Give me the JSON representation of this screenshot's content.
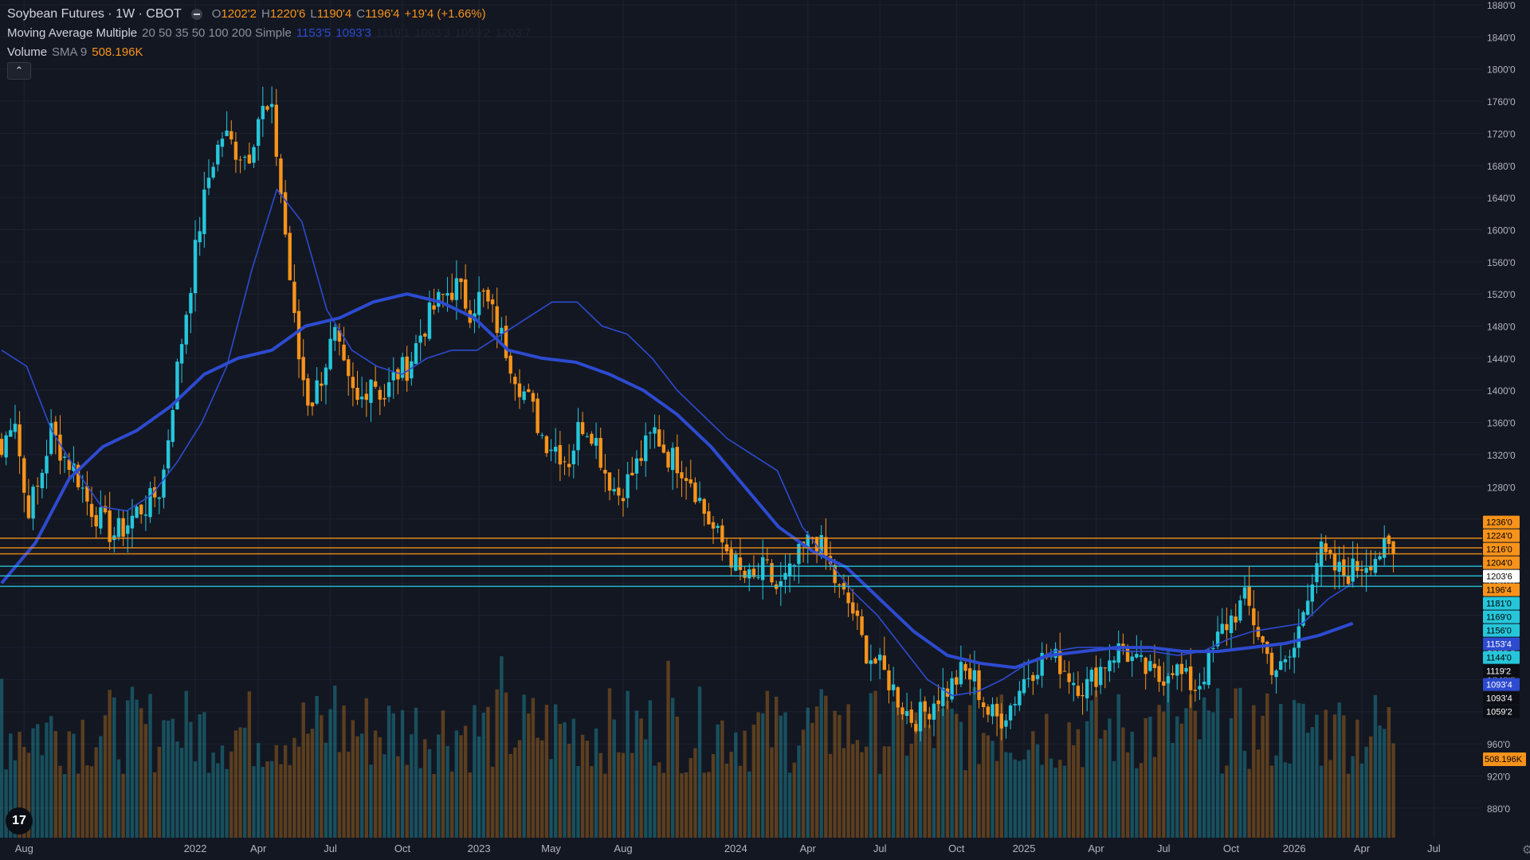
{
  "header": {
    "symbol_title": "Soybean Futures · 1W · CBOT",
    "ohlc": {
      "o_label": "O",
      "o_value": "1202'2",
      "h_label": "H",
      "h_value": "1220'6",
      "l_label": "L",
      "l_value": "1190'4",
      "c_label": "C",
      "c_value": "1196'4",
      "change": "+19'4 (+1.66%)"
    },
    "ma_indicator": {
      "name": "Moving Average Multiple",
      "params": "20 50 35 50 100 200 Simple",
      "values": [
        "1153'5",
        "1093'3",
        "1119'1",
        "1093'3",
        "1059'2",
        "1203'7"
      ]
    },
    "volume_indicator": {
      "name": "Volume",
      "params": "SMA 9",
      "value": "508.196K"
    },
    "collapse_icon": "chevron-up-icon"
  },
  "colors": {
    "background": "#131722",
    "up": "#26c6da",
    "down": "#f7931a",
    "ma_thin": "#2d4bd0",
    "ma_thick": "#2d4bd0",
    "grid": "#1e2230",
    "axis_text": "#b2b5be"
  },
  "chart_data": {
    "type": "candlestick",
    "title": "Soybean Futures · 1W · CBOT",
    "xlabel": "",
    "ylabel": "",
    "ylim": [
      860,
      1880
    ],
    "x_tick_labels": [
      "Aug",
      "2022",
      "Apr",
      "Jul",
      "Oct",
      "2023",
      "May",
      "Aug",
      "2024",
      "Apr",
      "Jul",
      "Oct",
      "2025",
      "Apr",
      "Jul",
      "Oct",
      "2026",
      "Apr",
      "Jul"
    ],
    "x_tick_positions_week": [
      5,
      43,
      57,
      73,
      89,
      106,
      122,
      138,
      163,
      179,
      195,
      212,
      227,
      243,
      258,
      273,
      287,
      302,
      318
    ],
    "y_tick_values": [
      880,
      920,
      960,
      1000,
      1040,
      1080,
      1120,
      1160,
      1200,
      1240,
      1280,
      1320,
      1360,
      1400,
      1440,
      1480,
      1520,
      1560,
      1600,
      1640,
      1680,
      1720,
      1760,
      1800,
      1840,
      1880
    ],
    "y_tick_labels": [
      "880'0",
      "920'0",
      "960'0",
      "1000'0",
      "1040'0",
      "1080'0",
      "1120'0",
      "1160'0",
      "1200'0",
      "1240'0",
      "1280'0",
      "1320'0",
      "1360'0",
      "1400'0",
      "1440'0",
      "1480'0",
      "1520'0",
      "1560'0",
      "1600'0",
      "1640'0",
      "1680'0",
      "1720'0",
      "1760'0",
      "1800'0",
      "1840'0",
      "1880'0"
    ],
    "price_labels": [
      {
        "label": "1236'0",
        "value": 1236,
        "kind": "orange"
      },
      {
        "label": "1224'0",
        "value": 1224,
        "kind": "orange"
      },
      {
        "label": "1216'0",
        "value": 1216,
        "kind": "orange"
      },
      {
        "label": "1204'0",
        "value": 1204,
        "kind": "orange"
      },
      {
        "label": "1203'6",
        "value": 1203.75,
        "kind": "white"
      },
      {
        "label": "1196'4",
        "value": 1196.5,
        "kind": "orange"
      },
      {
        "label": "1181'0",
        "value": 1181,
        "kind": "cyan"
      },
      {
        "label": "1169'0",
        "value": 1169,
        "kind": "cyan"
      },
      {
        "label": "1156'0",
        "value": 1156,
        "kind": "cyan"
      },
      {
        "label": "1153'4",
        "value": 1153.5,
        "kind": "blue"
      },
      {
        "label": "1144'0",
        "value": 1144,
        "kind": "cyan"
      },
      {
        "label": "1119'2",
        "value": 1119.25,
        "kind": "black"
      },
      {
        "label": "1093'4",
        "value": 1093.5,
        "kind": "blue"
      },
      {
        "label": "1093'4",
        "value": 1093.5,
        "kind": "black"
      },
      {
        "label": "1059'2",
        "value": 1059.25,
        "kind": "black"
      }
    ],
    "volume_label": "508.196K",
    "horizontal_lines": [
      {
        "value": 1216,
        "color": "orange"
      },
      {
        "value": 1204,
        "color": "orange"
      },
      {
        "value": 1196.5,
        "color": "orange"
      },
      {
        "value": 1181,
        "color": "cyan"
      },
      {
        "value": 1169,
        "color": "cyan"
      },
      {
        "value": 1156,
        "color": "cyan"
      }
    ],
    "ma_fast_anchor_values": [
      1450,
      1430,
      1350,
      1300,
      1255,
      1250,
      1270,
      1310,
      1360,
      1430,
      1550,
      1650,
      1610,
      1500,
      1450,
      1430,
      1420,
      1440,
      1450,
      1450,
      1470,
      1490,
      1510,
      1510,
      1480,
      1470,
      1440,
      1400,
      1370,
      1340,
      1320,
      1300,
      1230,
      1190,
      1150,
      1120,
      1080,
      1040,
      1020,
      1025,
      1040,
      1060,
      1075,
      1080,
      1080,
      1075,
      1075,
      1070,
      1075,
      1090,
      1100,
      1105,
      1110,
      1140,
      1160
    ],
    "ma_slow_anchor_values": [
      1160,
      1210,
      1290,
      1330,
      1350,
      1380,
      1420,
      1440,
      1450,
      1480,
      1490,
      1510,
      1520,
      1510,
      1490,
      1450,
      1440,
      1435,
      1420,
      1400,
      1370,
      1330,
      1280,
      1230,
      1200,
      1180,
      1140,
      1100,
      1070,
      1060,
      1055,
      1070,
      1075,
      1080,
      1080,
      1075,
      1075,
      1080,
      1085,
      1095,
      1110
    ],
    "ohlc_anchor_closes": [
      1320,
      1380,
      1250,
      1280,
      1350,
      1320,
      1300,
      1260,
      1240,
      1220,
      1230,
      1250,
      1260,
      1280,
      1400,
      1500,
      1600,
      1680,
      1720,
      1700,
      1690,
      1750,
      1740,
      1600,
      1450,
      1380,
      1420,
      1470,
      1410,
      1380,
      1420,
      1390,
      1420,
      1430,
      1470,
      1500,
      1520,
      1530,
      1500,
      1520,
      1490,
      1450,
      1410,
      1380,
      1340,
      1330,
      1310,
      1360,
      1350,
      1300,
      1270,
      1290,
      1320,
      1350,
      1320,
      1310,
      1290,
      1250,
      1220,
      1200,
      1170,
      1160,
      1180,
      1150,
      1170,
      1200,
      1220,
      1190,
      1150,
      1130,
      1080,
      1060,
      1040,
      1010,
      990,
      1000,
      1020,
      1030,
      1050,
      1040,
      1000,
      990,
      1010,
      1040,
      1060,
      1070,
      1060,
      1040,
      1030,
      1050,
      1070,
      1080,
      1060,
      1050,
      1040,
      1060,
      1040,
      1030,
      1060,
      1100,
      1120,
      1140,
      1100,
      1060,
      1050,
      1080,
      1150,
      1200,
      1180,
      1170,
      1180,
      1190,
      1200,
      1196.5
    ]
  }
}
